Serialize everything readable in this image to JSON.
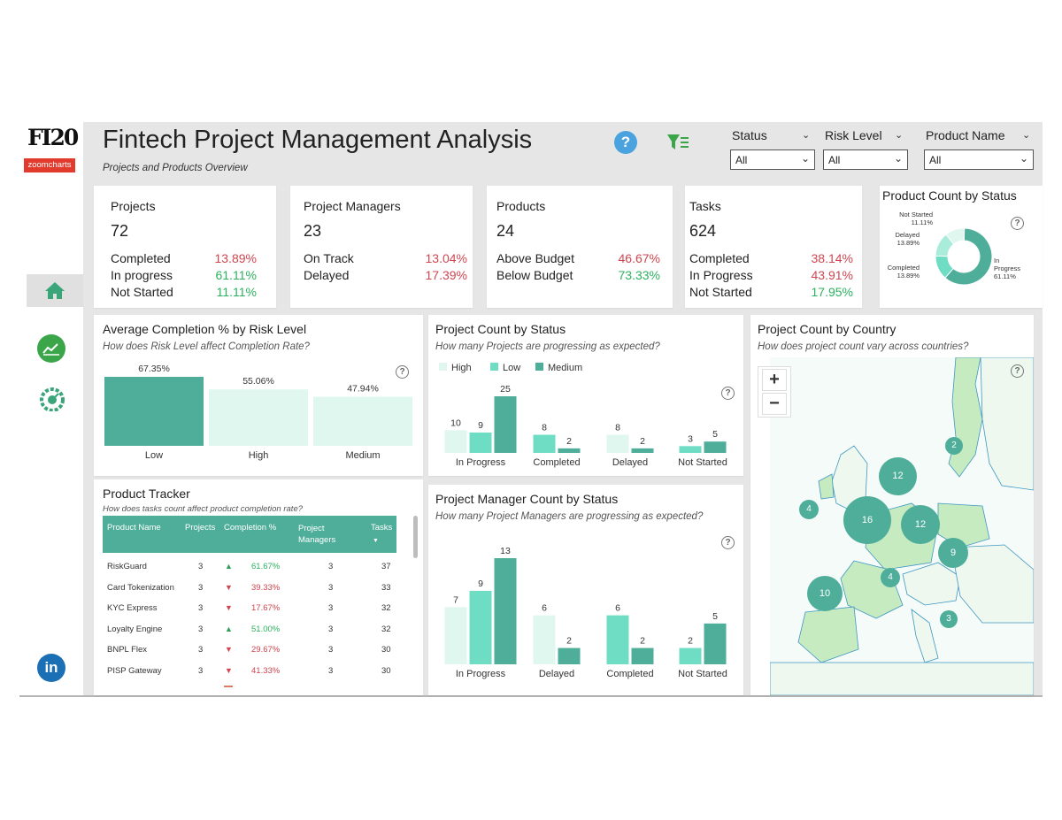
{
  "header": {
    "logo_text": "FI20",
    "logo_sub": "zoomcharts",
    "title": "Fintech Project Management Analysis",
    "subtitle": "Projects and Products Overview",
    "help_icon": "?"
  },
  "filters": [
    {
      "label": "Status",
      "value": "All"
    },
    {
      "label": "Risk Level",
      "value": "All"
    },
    {
      "label": "Product Name",
      "value": "All"
    }
  ],
  "kpis": [
    {
      "title": "Projects",
      "value": "72",
      "rows": [
        {
          "label": "Completed",
          "pct": "13.89%",
          "color": "#d0454f"
        },
        {
          "label": "In progress",
          "pct": "61.11%",
          "color": "#2bb25e"
        },
        {
          "label": "Not Started",
          "pct": "11.11%",
          "color": "#2bb25e"
        }
      ]
    },
    {
      "title": "Project Managers",
      "value": "23",
      "rows": [
        {
          "label": "On Track",
          "pct": "13.04%",
          "color": "#d0454f"
        },
        {
          "label": "Delayed",
          "pct": "17.39%",
          "color": "#d0454f"
        }
      ]
    },
    {
      "title": "Products",
      "value": "24",
      "rows": [
        {
          "label": "Above Budget",
          "pct": "46.67%",
          "color": "#d0454f"
        },
        {
          "label": "Below Budget",
          "pct": "73.33%",
          "color": "#2bb25e"
        }
      ]
    },
    {
      "title": "Tasks",
      "value": "624",
      "rows": [
        {
          "label": "Completed",
          "pct": "38.14%",
          "color": "#d0454f"
        },
        {
          "label": "In Progress",
          "pct": "43.91%",
          "color": "#d0454f"
        },
        {
          "label": "Not Started",
          "pct": "17.95%",
          "color": "#2bb25e"
        }
      ]
    }
  ],
  "donut": {
    "title": "Product Count by Status",
    "slices": [
      {
        "name": "In Progress",
        "pct": "61.11%",
        "value": 61.11,
        "color": "#4fae9a"
      },
      {
        "name": "Completed",
        "pct": "13.89%",
        "value": 13.89,
        "color": "#6fdcc4"
      },
      {
        "name": "Delayed",
        "pct": "13.89%",
        "value": 13.89,
        "color": "#a8ecd9"
      },
      {
        "name": "Not Started",
        "pct": "11.11%",
        "value": 11.11,
        "color": "#dff7ef"
      }
    ]
  },
  "avg_completion": {
    "title": "Average Completion % by Risk Level",
    "subtitle": "How does Risk Level affect Completion Rate?"
  },
  "project_status": {
    "title": "Project Count by Status",
    "subtitle": "How many Projects are progressing as expected?"
  },
  "country": {
    "title": "Project Count by Country",
    "subtitle": "How does project count vary across countries?",
    "zoom_in": "+",
    "zoom_out": "−",
    "bubbles": [
      12,
      16,
      12,
      9,
      10,
      4,
      4,
      2,
      3
    ]
  },
  "tracker": {
    "title": "Product Tracker",
    "subtitle": "How does tasks count affect product completion rate?",
    "columns": [
      "Product Name",
      "Projects",
      "Completion %",
      "Project Managers",
      "Tasks"
    ],
    "rows": [
      {
        "name": "RiskGuard",
        "projects": "3",
        "trend": "up",
        "completion": "61.67%",
        "managers": "3",
        "tasks": "37"
      },
      {
        "name": "Card Tokenization",
        "projects": "3",
        "trend": "down",
        "completion": "39.33%",
        "managers": "3",
        "tasks": "33"
      },
      {
        "name": "KYC Express",
        "projects": "3",
        "trend": "down",
        "completion": "17.67%",
        "managers": "3",
        "tasks": "32"
      },
      {
        "name": "Loyalty Engine",
        "projects": "3",
        "trend": "up",
        "completion": "51.00%",
        "managers": "3",
        "tasks": "32"
      },
      {
        "name": "BNPL Flex",
        "projects": "3",
        "trend": "down",
        "completion": "29.67%",
        "managers": "3",
        "tasks": "30"
      },
      {
        "name": "PISP Gateway",
        "projects": "3",
        "trend": "down",
        "completion": "41.33%",
        "managers": "3",
        "tasks": "30"
      }
    ]
  },
  "pm_status": {
    "title": "Project Manager Count by Status",
    "subtitle": "How many Project Managers are progressing as expected?"
  },
  "chart_data": [
    {
      "type": "bar",
      "title": "Average Completion % by Risk Level",
      "categories": [
        "Low",
        "High",
        "Medium"
      ],
      "values": [
        67.35,
        55.06,
        47.94
      ],
      "labels": [
        "67.35%",
        "55.06%",
        "47.94%"
      ],
      "colors": [
        "#4fae9a",
        "#dff7ef",
        "#dff7ef"
      ],
      "ylim": [
        0,
        70
      ]
    },
    {
      "type": "bar",
      "title": "Project Count by Status",
      "categories": [
        "In Progress",
        "Completed",
        "Delayed",
        "Not Started"
      ],
      "series": [
        {
          "name": "High",
          "color": "#dff7ef",
          "values": [
            10,
            null,
            8,
            null
          ]
        },
        {
          "name": "Low",
          "color": "#6fdcc4",
          "values": [
            9,
            8,
            null,
            3
          ]
        },
        {
          "name": "Medium",
          "color": "#4fae9a",
          "values": [
            25,
            2,
            2,
            5
          ]
        }
      ],
      "ylim": [
        0,
        25
      ]
    },
    {
      "type": "bar",
      "title": "Project Manager Count by Status",
      "categories": [
        "In Progress",
        "Delayed",
        "Completed",
        "Not Started"
      ],
      "series": [
        {
          "name": "High",
          "color": "#dff7ef",
          "values": [
            7,
            6,
            null,
            null
          ]
        },
        {
          "name": "Low",
          "color": "#6fdcc4",
          "values": [
            9,
            null,
            6,
            2
          ]
        },
        {
          "name": "Medium",
          "color": "#4fae9a",
          "values": [
            13,
            2,
            2,
            5
          ]
        }
      ],
      "ylim": [
        0,
        13
      ]
    }
  ]
}
